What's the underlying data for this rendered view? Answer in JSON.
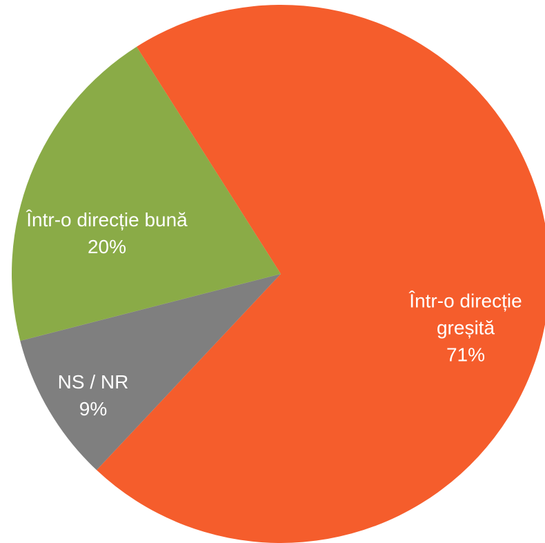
{
  "chart_data": {
    "type": "pie",
    "categories": [
      "Într-o direcție greșită",
      "NS / NR",
      "Într-o direcție bună"
    ],
    "values": [
      71,
      9,
      20
    ],
    "value_labels": [
      "71%",
      "9%",
      "20%"
    ],
    "colors": [
      "#f55d2c",
      "#7f7f7f",
      "#8aab47"
    ]
  }
}
